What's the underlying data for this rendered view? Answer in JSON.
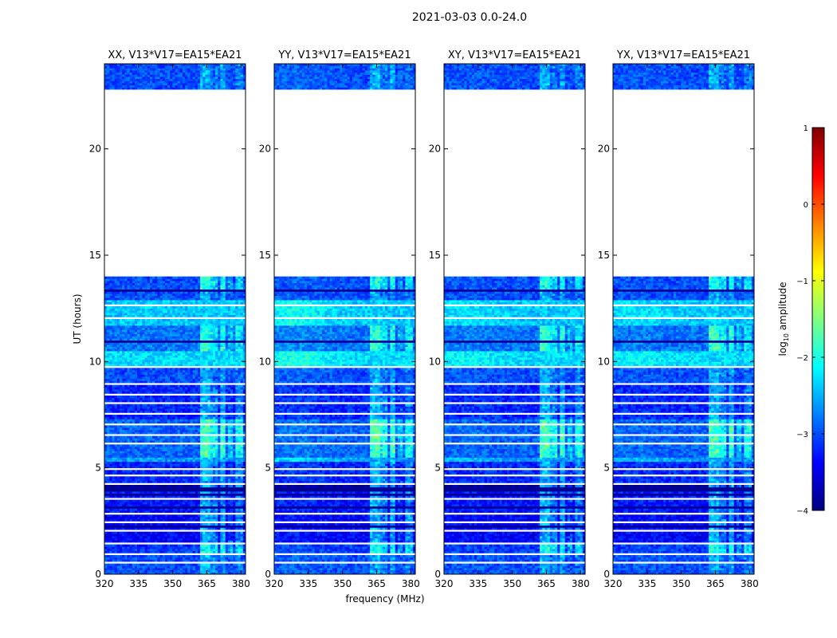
{
  "figure": {
    "suptitle": "2021-03-03 0.0-24.0",
    "xlabel": "frequency (MHz)",
    "ylabel": "UT (hours)"
  },
  "chart_data": {
    "type": "heatmap",
    "suptitle": "2021-03-03 0.0-24.0",
    "xlabel": "frequency (MHz)",
    "ylabel": "UT (hours)",
    "xlim": [
      320,
      382
    ],
    "ylim": [
      0,
      24
    ],
    "xticks": [
      320,
      335,
      350,
      365,
      380
    ],
    "yticks": [
      0,
      5,
      10,
      15,
      20
    ],
    "panels": [
      {
        "name": "XX",
        "title": "XX, V13*V17=EA15*EA21",
        "extra": 0.0
      },
      {
        "name": "YY",
        "title": "YY, V13*V17=EA15*EA21",
        "extra": 0.35
      },
      {
        "name": "XY",
        "title": "XY, V13*V17=EA15*EA21",
        "extra": 0.15
      },
      {
        "name": "YX",
        "title": "YX, V13*V17=EA15*EA21",
        "extra": 0.15
      }
    ],
    "time_blocks": [
      {
        "start": 0.0,
        "end": 0.9,
        "level": -3.0
      },
      {
        "start": 1.0,
        "end": 1.5,
        "level": -3.1
      },
      {
        "start": 1.5,
        "end": 2.9,
        "level": -3.4
      },
      {
        "start": 2.9,
        "end": 3.9,
        "level": -3.3
      },
      {
        "start": 3.9,
        "end": 4.3,
        "level": -3.9
      },
      {
        "start": 4.3,
        "end": 5.3,
        "level": -3.2
      },
      {
        "start": 5.3,
        "end": 5.5,
        "level": -2.6
      },
      {
        "start": 5.5,
        "end": 7.3,
        "level": -2.9
      },
      {
        "start": 7.3,
        "end": 8.9,
        "level": -3.2
      },
      {
        "start": 9.0,
        "end": 9.7,
        "level": -3.0
      },
      {
        "start": 9.8,
        "end": 10.5,
        "level": -2.3
      },
      {
        "start": 10.5,
        "end": 11.7,
        "level": -2.8
      },
      {
        "start": 11.7,
        "end": 12.9,
        "level": -2.4
      },
      {
        "start": 12.9,
        "end": 14.0,
        "level": -3.0
      },
      {
        "start": 22.8,
        "end": 24.0,
        "level": -3.0
      }
    ],
    "gaps": [
      {
        "start": 0.55,
        "end": 0.62
      },
      {
        "start": 0.9,
        "end": 1.0
      },
      {
        "start": 1.45,
        "end": 1.52
      },
      {
        "start": 2.0,
        "end": 2.06
      },
      {
        "start": 2.4,
        "end": 2.46
      },
      {
        "start": 2.8,
        "end": 2.86
      },
      {
        "start": 3.3,
        "end": 3.35
      },
      {
        "start": 3.55,
        "end": 3.6
      },
      {
        "start": 4.2,
        "end": 4.26
      },
      {
        "start": 4.6,
        "end": 4.66
      },
      {
        "start": 4.95,
        "end": 5.0
      },
      {
        "start": 6.1,
        "end": 6.16
      },
      {
        "start": 6.5,
        "end": 6.56
      },
      {
        "start": 7.05,
        "end": 7.1
      },
      {
        "start": 7.5,
        "end": 7.56
      },
      {
        "start": 8.0,
        "end": 8.06
      },
      {
        "start": 8.4,
        "end": 8.46
      },
      {
        "start": 8.9,
        "end": 9.0
      },
      {
        "start": 9.7,
        "end": 9.8
      },
      {
        "start": 12.05,
        "end": 12.1
      },
      {
        "start": 12.6,
        "end": 12.7
      },
      {
        "start": 13.4,
        "end": 13.45
      },
      {
        "start": 14.0,
        "end": 22.8
      }
    ],
    "dark_lines": [
      2.3,
      3.1,
      3.7,
      4.0,
      9.5,
      10.9,
      13.3
    ],
    "rfi_bands": [
      {
        "from": 362.5,
        "to": 366.0,
        "level": -1.6
      },
      {
        "from": 366.5,
        "to": 369.5,
        "level": -1.9
      },
      {
        "from": 370.5,
        "to": 373.5,
        "level": -1.7
      },
      {
        "from": 374.0,
        "to": 377.0,
        "level": -2.2
      },
      {
        "from": 377.5,
        "to": 381.0,
        "level": -1.9
      }
    ],
    "rfi_boost_hours": [
      {
        "start": 0.9,
        "end": 1.5,
        "boost": 0.9
      },
      {
        "start": 5.5,
        "end": 7.3,
        "boost": 1.3
      },
      {
        "start": 10.5,
        "end": 11.7,
        "boost": 1.1
      },
      {
        "start": 13.4,
        "end": 14.0,
        "boost": 0.9
      }
    ],
    "colorbar": {
      "label_prefix": "log",
      "label_sub": "10",
      "label_suffix": " amplitude",
      "range": [
        -4,
        1
      ],
      "ticks": [
        "1",
        "0",
        "−1",
        "−2",
        "−3",
        "−4"
      ],
      "colormap": "jet",
      "colors": [
        "#000080",
        "#0000ff",
        "#0080ff",
        "#00ffff",
        "#80ff80",
        "#ffff00",
        "#ff8000",
        "#ff0000",
        "#800000"
      ]
    }
  }
}
